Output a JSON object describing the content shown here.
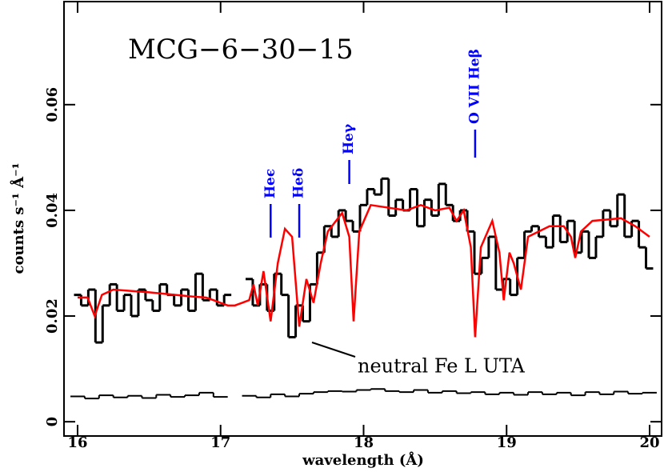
{
  "chart_data": {
    "type": "spectrum",
    "title": "MCG−6−30−15",
    "xlabel": "wavelength (Å)",
    "ylabel": "counts s⁻¹ Å⁻¹",
    "xlim": [
      15.905,
      20.084
    ],
    "ylim": [
      -0.0027,
      0.0795
    ],
    "xticks": [
      16,
      17,
      18,
      19,
      20
    ],
    "yticks": [
      0,
      0.02,
      0.04,
      0.06
    ],
    "series": [
      {
        "name": "data",
        "color": "#000000",
        "x": [
          16.0,
          16.05,
          16.1,
          16.15,
          16.2,
          16.25,
          16.3,
          16.35,
          16.4,
          16.45,
          16.5,
          16.55,
          16.6,
          16.65,
          16.7,
          16.75,
          16.8,
          16.85,
          16.9,
          16.95,
          17.0,
          17.05,
          17.1,
          17.15,
          17.2,
          17.25,
          17.3,
          17.35,
          17.4,
          17.45,
          17.5,
          17.55,
          17.6,
          17.65,
          17.7,
          17.75,
          17.8,
          17.85,
          17.9,
          17.95,
          18.0,
          18.05,
          18.1,
          18.15,
          18.2,
          18.25,
          18.3,
          18.35,
          18.4,
          18.45,
          18.5,
          18.55,
          18.6,
          18.65,
          18.7,
          18.75,
          18.8,
          18.85,
          18.9,
          18.95,
          19.0,
          19.05,
          19.1,
          19.15,
          19.2,
          19.25,
          19.3,
          19.35,
          19.4,
          19.45,
          19.5,
          19.55,
          19.6,
          19.65,
          19.7,
          19.75,
          19.8,
          19.85,
          19.9,
          19.95,
          20.0
        ],
        "values": [
          0.024,
          0.022,
          0.025,
          0.015,
          0.022,
          0.026,
          0.021,
          0.024,
          0.02,
          0.025,
          0.023,
          0.021,
          0.026,
          0.024,
          0.022,
          0.025,
          0.021,
          0.028,
          0.023,
          0.025,
          0.022,
          0.024,
          null,
          null,
          0.027,
          0.022,
          0.026,
          0.021,
          0.028,
          0.024,
          0.016,
          0.022,
          0.019,
          0.026,
          0.032,
          0.037,
          0.035,
          0.04,
          0.038,
          0.036,
          0.041,
          0.044,
          0.043,
          0.046,
          0.039,
          0.042,
          0.04,
          0.044,
          0.037,
          0.042,
          0.039,
          0.045,
          0.041,
          0.038,
          0.04,
          0.036,
          0.028,
          0.031,
          0.035,
          0.025,
          0.027,
          0.024,
          0.031,
          0.036,
          0.037,
          0.035,
          0.033,
          0.039,
          0.034,
          0.038,
          0.032,
          0.036,
          0.031,
          0.035,
          0.04,
          0.037,
          0.043,
          0.035,
          0.038,
          0.033,
          0.029
        ]
      },
      {
        "name": "model",
        "color": "#ff0000",
        "x": [
          16.0,
          16.07,
          16.12,
          16.17,
          16.25,
          16.5,
          16.8,
          16.9,
          16.95,
          17.0,
          17.05,
          17.1,
          17.15,
          17.2,
          17.23,
          17.26,
          17.3,
          17.35,
          17.4,
          17.45,
          17.5,
          17.55,
          17.6,
          17.65,
          17.7,
          17.75,
          17.85,
          17.9,
          17.93,
          17.97,
          18.05,
          18.3,
          18.4,
          18.5,
          18.6,
          18.65,
          18.7,
          18.75,
          18.78,
          18.82,
          18.9,
          18.95,
          18.98,
          19.02,
          19.05,
          19.1,
          19.15,
          19.3,
          19.4,
          19.45,
          19.48,
          19.52,
          19.6,
          19.8,
          19.9,
          20.0
        ],
        "values": [
          0.0235,
          0.0235,
          0.02,
          0.024,
          0.025,
          0.0245,
          0.0237,
          0.0235,
          0.023,
          0.0225,
          0.022,
          0.022,
          0.0225,
          0.023,
          0.026,
          0.022,
          0.0285,
          0.019,
          0.03,
          0.0365,
          0.035,
          0.018,
          0.027,
          0.0225,
          0.03,
          0.036,
          0.0395,
          0.035,
          0.019,
          0.036,
          0.041,
          0.04,
          0.041,
          0.04,
          0.0405,
          0.038,
          0.04,
          0.033,
          0.016,
          0.033,
          0.038,
          0.032,
          0.023,
          0.032,
          0.03,
          0.025,
          0.035,
          0.037,
          0.037,
          0.035,
          0.031,
          0.036,
          0.038,
          0.0385,
          0.037,
          0.035
        ]
      },
      {
        "name": "background",
        "color": "#000000",
        "x": [
          16.0,
          16.1,
          16.2,
          16.3,
          16.4,
          16.5,
          16.6,
          16.7,
          16.8,
          16.9,
          17.0,
          17.1,
          17.2,
          17.3,
          17.4,
          17.5,
          17.6,
          17.7,
          17.8,
          17.9,
          18.0,
          18.1,
          18.2,
          18.3,
          18.4,
          18.5,
          18.6,
          18.7,
          18.8,
          18.9,
          19.0,
          19.1,
          19.2,
          19.3,
          19.4,
          19.5,
          19.6,
          19.7,
          19.8,
          19.9,
          20.0
        ],
        "values": [
          0.0048,
          0.0044,
          0.005,
          0.0046,
          0.0049,
          0.0045,
          0.0051,
          0.0047,
          0.005,
          0.0055,
          0.0047,
          null,
          0.0049,
          0.0046,
          0.0052,
          0.0048,
          0.0053,
          0.0056,
          0.0058,
          0.0057,
          0.006,
          0.0062,
          0.0058,
          0.0056,
          0.006,
          0.0055,
          0.0058,
          0.0054,
          0.0056,
          0.0052,
          0.0055,
          0.0051,
          0.0056,
          0.0052,
          0.0055,
          0.005,
          0.0056,
          0.0052,
          0.0057,
          0.0053,
          0.0055
        ]
      }
    ],
    "annotations": [
      {
        "text": "Heϵ",
        "x": 17.35,
        "color": "#0000ff"
      },
      {
        "text": "Heδ",
        "x": 17.55,
        "color": "#0000ff"
      },
      {
        "text": "Heγ",
        "x": 17.9,
        "color": "#0000ff"
      },
      {
        "text": "O VII Heβ",
        "x": 18.78,
        "color": "#0000ff"
      },
      {
        "text": "neutral Fe L UTA",
        "color": "#000000"
      }
    ]
  }
}
